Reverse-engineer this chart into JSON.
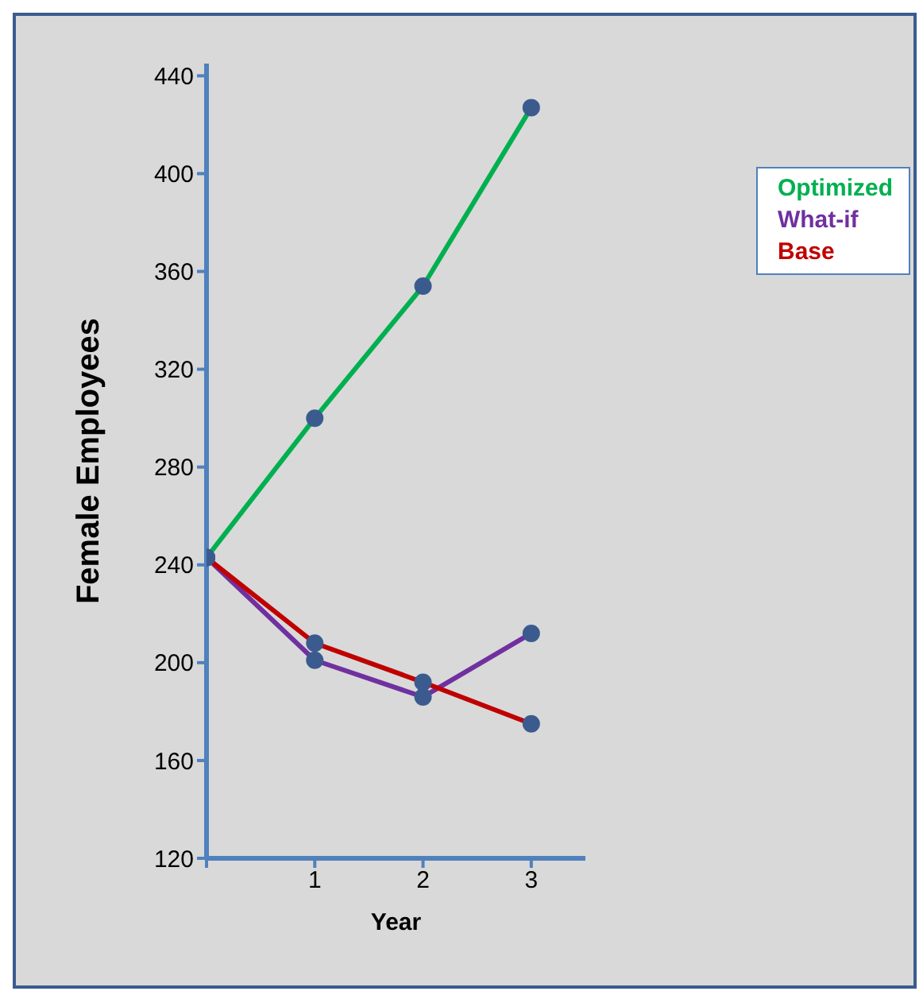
{
  "chart_data": {
    "type": "line",
    "xlabel": "Year",
    "ylabel": "Female Employees",
    "x": [
      0,
      1,
      2,
      3
    ],
    "series": [
      {
        "name": "Optimized",
        "color": "#00b050",
        "values": [
          243,
          300,
          354,
          427
        ]
      },
      {
        "name": "What-if",
        "color": "#7030a0",
        "values": [
          243,
          201,
          186,
          212
        ]
      },
      {
        "name": "Base",
        "color": "#c00000",
        "values": [
          243,
          208,
          192,
          175
        ]
      }
    ],
    "xlim": [
      0,
      3.5
    ],
    "xticks": [
      {
        "value": 0,
        "label": null
      },
      1,
      2,
      3
    ],
    "ylim": [
      120,
      445
    ],
    "yticks": [
      120,
      160,
      200,
      240,
      280,
      320,
      360,
      400,
      440
    ],
    "grid": false,
    "legend": "top right",
    "marker": "circle",
    "line_style": "solid"
  }
}
